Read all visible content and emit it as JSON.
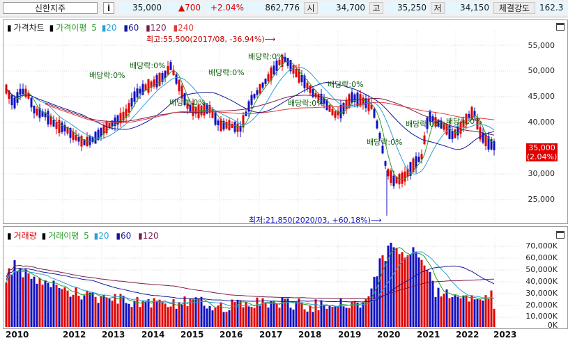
{
  "header": {
    "stock_name": "신한지주",
    "info_button": "i",
    "price": "35,000",
    "change": "▲700",
    "change_pct": "+2.04%",
    "volume": "862,776",
    "open_label": "시",
    "open": "34,700",
    "high_label": "고",
    "high": "35,250",
    "low_label": "저",
    "low": "34,150",
    "strength_label": "체결강도",
    "strength": "162.3"
  },
  "price_panel": {
    "legend": {
      "title": "가격차트",
      "ma_label": "가격이평",
      "ma5": "5",
      "ma20": "20",
      "ma60": "60",
      "ma120": "120",
      "ma240": "240"
    },
    "y_ticks": [
      "55,000",
      "50,000",
      "45,000",
      "40,000",
      "35,000",
      "30,000",
      "25,000"
    ],
    "current_price_tag": "35,000",
    "current_pct_tag": "(2.04%)",
    "high_annotation": "최고:55,500(2017/08, -36.94%)⟶",
    "low_annotation": "최저:21,850(2020/03, +60.18%)⟶",
    "dividend_label": "배당락:0%"
  },
  "volume_panel": {
    "legend": {
      "title": "거래량",
      "ma_label": "거래이평",
      "ma5": "5",
      "ma20": "20",
      "ma60": "60",
      "ma120": "120"
    },
    "y_ticks": [
      "70,000K",
      "60,000K",
      "50,000K",
      "40,000K",
      "30,000K",
      "20,000K",
      "10,000K",
      "0K"
    ]
  },
  "x_axis": [
    "2010",
    "2012",
    "2013",
    "2014",
    "2015",
    "2016",
    "2017",
    "2018",
    "2019",
    "2020",
    "2021",
    "2022",
    "2023"
  ],
  "colors": {
    "up": "#e00000",
    "down": "#1010c0",
    "ma5": "#2e9a2e",
    "ma20": "#2c9fd8",
    "ma60": "#16169a",
    "ma120": "#7a1c4a",
    "ma240": "#e23a3a"
  }
}
